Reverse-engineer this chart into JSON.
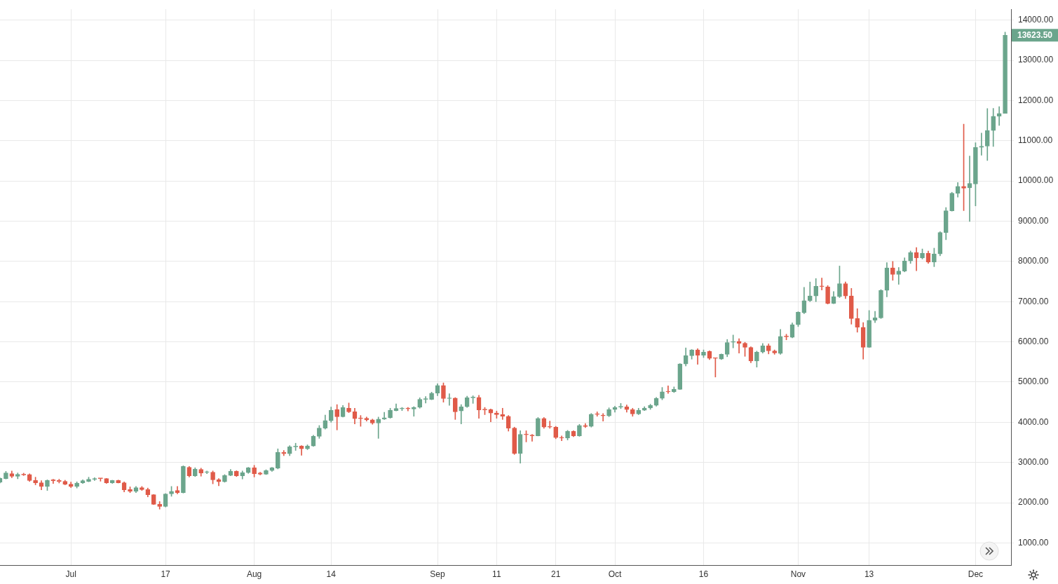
{
  "chart_data": {
    "type": "candlestick",
    "x": [
      "--06-19",
      "--06-20",
      "--06-21",
      "--06-22",
      "--06-23",
      "--06-24",
      "--06-25",
      "--06-26",
      "--06-27",
      "--06-28",
      "--06-29",
      "--06-30",
      "--07-01",
      "--07-02",
      "--07-03",
      "--07-04",
      "--07-05",
      "--07-06",
      "--07-07",
      "--07-08",
      "--07-09",
      "--07-10",
      "--07-11",
      "--07-12",
      "--07-13",
      "--07-14",
      "--07-15",
      "--07-16",
      "--07-17",
      "--07-18",
      "--07-19",
      "--07-20",
      "--07-21",
      "--07-22",
      "--07-23",
      "--07-24",
      "--07-25",
      "--07-26",
      "--07-27",
      "--07-28",
      "--07-29",
      "--07-30",
      "--07-31",
      "--08-01",
      "--08-02",
      "--08-03",
      "--08-04",
      "--08-05",
      "--08-06",
      "--08-07",
      "--08-08",
      "--08-09",
      "--08-10",
      "--08-11",
      "--08-12",
      "--08-13",
      "--08-14",
      "--08-15",
      "--08-16",
      "--08-17",
      "--08-18",
      "--08-19",
      "--08-20",
      "--08-21",
      "--08-22",
      "--08-23",
      "--08-24",
      "--08-25",
      "--08-26",
      "--08-27",
      "--08-28",
      "--08-29",
      "--08-30",
      "--08-31",
      "--09-01",
      "--09-02",
      "--09-03",
      "--09-04",
      "--09-05",
      "--09-06",
      "--09-07",
      "--09-08",
      "--09-09",
      "--09-10",
      "--09-11",
      "--09-12",
      "--09-13",
      "--09-14",
      "--09-15",
      "--09-16",
      "--09-17",
      "--09-18",
      "--09-19",
      "--09-20",
      "--09-21",
      "--09-22",
      "--09-23",
      "--09-24",
      "--09-25",
      "--09-26",
      "--09-27",
      "--09-28",
      "--09-29",
      "--09-30",
      "--10-01",
      "--10-02",
      "--10-03",
      "--10-04",
      "--10-05",
      "--10-06",
      "--10-07",
      "--10-08",
      "--10-09",
      "--10-10",
      "--10-11",
      "--10-12",
      "--10-13",
      "--10-14",
      "--10-15",
      "--10-16",
      "--10-17",
      "--10-18",
      "--10-19",
      "--10-20",
      "--10-21",
      "--10-22",
      "--10-23",
      "--10-24",
      "--10-25",
      "--10-26",
      "--10-27",
      "--10-28",
      "--10-29",
      "--10-30",
      "--10-31",
      "--11-01",
      "--11-02",
      "--11-03",
      "--11-04",
      "--11-05",
      "--11-06",
      "--11-07",
      "--11-08",
      "--11-09",
      "--11-10",
      "--11-11",
      "--11-12",
      "--11-13",
      "--11-14",
      "--11-15",
      "--11-16",
      "--11-17",
      "--11-18",
      "--11-19",
      "--11-20",
      "--11-21",
      "--11-22",
      "--11-23",
      "--11-24",
      "--11-25",
      "--11-26",
      "--11-27",
      "--11-28",
      "--11-29",
      "--11-30",
      "--12-01",
      "--12-02",
      "--12-03",
      "--12-04",
      "--12-05",
      "--12-06"
    ],
    "ohlc": [
      [
        2510,
        2620,
        2490,
        2605
      ],
      [
        2600,
        2780,
        2590,
        2740
      ],
      [
        2725,
        2790,
        2620,
        2655
      ],
      [
        2655,
        2740,
        2595,
        2705
      ],
      [
        2710,
        2735,
        2675,
        2690
      ],
      [
        2700,
        2720,
        2530,
        2550
      ],
      [
        2555,
        2635,
        2445,
        2495
      ],
      [
        2495,
        2550,
        2320,
        2405
      ],
      [
        2405,
        2570,
        2305,
        2555
      ],
      [
        2570,
        2585,
        2480,
        2545
      ],
      [
        2555,
        2585,
        2490,
        2525
      ],
      [
        2530,
        2560,
        2445,
        2460
      ],
      [
        2460,
        2515,
        2375,
        2405
      ],
      [
        2405,
        2520,
        2365,
        2490
      ],
      [
        2495,
        2570,
        2480,
        2550
      ],
      [
        2530,
        2635,
        2520,
        2585
      ],
      [
        2580,
        2625,
        2550,
        2600
      ],
      [
        2602,
        2605,
        2535,
        2600
      ],
      [
        2600,
        2605,
        2480,
        2495
      ],
      [
        2495,
        2560,
        2480,
        2555
      ],
      [
        2555,
        2565,
        2490,
        2495
      ],
      [
        2495,
        2520,
        2270,
        2320
      ],
      [
        2330,
        2395,
        2250,
        2285
      ],
      [
        2285,
        2405,
        2250,
        2375
      ],
      [
        2375,
        2405,
        2305,
        2325
      ],
      [
        2325,
        2365,
        2145,
        2200
      ],
      [
        2200,
        2205,
        1955,
        1960
      ],
      [
        1960,
        2030,
        1840,
        1905
      ],
      [
        1905,
        2225,
        1895,
        2220
      ],
      [
        2220,
        2405,
        2160,
        2285
      ],
      [
        2305,
        2405,
        2220,
        2250
      ],
      [
        2250,
        2920,
        2240,
        2900
      ],
      [
        2880,
        2900,
        2640,
        2670
      ],
      [
        2670,
        2870,
        2650,
        2835
      ],
      [
        2830,
        2860,
        2660,
        2740
      ],
      [
        2755,
        2790,
        2720,
        2765
      ],
      [
        2760,
        2790,
        2470,
        2570
      ],
      [
        2575,
        2600,
        2420,
        2520
      ],
      [
        2520,
        2700,
        2510,
        2680
      ],
      [
        2680,
        2830,
        2670,
        2785
      ],
      [
        2785,
        2795,
        2650,
        2670
      ],
      [
        2670,
        2790,
        2590,
        2750
      ],
      [
        2750,
        2880,
        2730,
        2870
      ],
      [
        2870,
        2930,
        2640,
        2720
      ],
      [
        2740,
        2760,
        2690,
        2710
      ],
      [
        2710,
        2820,
        2700,
        2800
      ],
      [
        2800,
        2880,
        2780,
        2870
      ],
      [
        2860,
        3340,
        2840,
        3255
      ],
      [
        3255,
        3300,
        3170,
        3220
      ],
      [
        3220,
        3420,
        3170,
        3390
      ],
      [
        3390,
        3480,
        3300,
        3400
      ],
      [
        3410,
        3420,
        3180,
        3340
      ],
      [
        3340,
        3440,
        3320,
        3410
      ],
      [
        3410,
        3680,
        3400,
        3650
      ],
      [
        3650,
        3920,
        3600,
        3855
      ],
      [
        3855,
        4180,
        3830,
        4045
      ],
      [
        4040,
        4380,
        4000,
        4300
      ],
      [
        4320,
        4440,
        3810,
        4140
      ],
      [
        4140,
        4420,
        4130,
        4365
      ],
      [
        4350,
        4480,
        4240,
        4260
      ],
      [
        4260,
        4350,
        3960,
        4090
      ],
      [
        4095,
        4170,
        3900,
        4090
      ],
      [
        4100,
        4130,
        4030,
        4060
      ],
      [
        4060,
        4080,
        3950,
        3980
      ],
      [
        3980,
        4130,
        3600,
        4080
      ],
      [
        4080,
        4250,
        4070,
        4115
      ],
      [
        4115,
        4350,
        4100,
        4300
      ],
      [
        4290,
        4460,
        4280,
        4345
      ],
      [
        4335,
        4370,
        4290,
        4340
      ],
      [
        4340,
        4370,
        4280,
        4335
      ],
      [
        4330,
        4390,
        4150,
        4370
      ],
      [
        4375,
        4610,
        4350,
        4570
      ],
      [
        4570,
        4640,
        4480,
        4575
      ],
      [
        4570,
        4750,
        4560,
        4725
      ],
      [
        4725,
        4960,
        4660,
        4915
      ],
      [
        4915,
        4980,
        4500,
        4590
      ],
      [
        4590,
        4710,
        4420,
        4600
      ],
      [
        4600,
        4615,
        4070,
        4260
      ],
      [
        4280,
        4440,
        3960,
        4385
      ],
      [
        4385,
        4650,
        4370,
        4610
      ],
      [
        4610,
        4660,
        4470,
        4620
      ],
      [
        4620,
        4670,
        4100,
        4310
      ],
      [
        4320,
        4370,
        4190,
        4310
      ],
      [
        4320,
        4330,
        4010,
        4230
      ],
      [
        4230,
        4280,
        4100,
        4190
      ],
      [
        4190,
        4350,
        4070,
        4150
      ],
      [
        4150,
        4170,
        3780,
        3855
      ],
      [
        3855,
        3880,
        3200,
        3222
      ],
      [
        3222,
        3790,
        2984,
        3700
      ],
      [
        3700,
        3790,
        3512,
        3690
      ],
      [
        3680,
        3700,
        3530,
        3665
      ],
      [
        3665,
        4120,
        3660,
        4095
      ],
      [
        4095,
        4120,
        3850,
        3880
      ],
      [
        3890,
        4030,
        3850,
        3880
      ],
      [
        3880,
        3900,
        3590,
        3620
      ],
      [
        3620,
        3660,
        3540,
        3610
      ],
      [
        3610,
        3800,
        3560,
        3780
      ],
      [
        3780,
        3790,
        3640,
        3665
      ],
      [
        3665,
        3950,
        3650,
        3920
      ],
      [
        3920,
        3970,
        3870,
        3895
      ],
      [
        3900,
        4220,
        3880,
        4200
      ],
      [
        4200,
        4260,
        4150,
        4195
      ],
      [
        4180,
        4220,
        4030,
        4160
      ],
      [
        4160,
        4360,
        4140,
        4320
      ],
      [
        4315,
        4400,
        4250,
        4370
      ],
      [
        4380,
        4470,
        4340,
        4385
      ],
      [
        4385,
        4430,
        4250,
        4315
      ],
      [
        4315,
        4350,
        4150,
        4210
      ],
      [
        4210,
        4350,
        4190,
        4300
      ],
      [
        4300,
        4390,
        4290,
        4355
      ],
      [
        4355,
        4450,
        4320,
        4420
      ],
      [
        4420,
        4620,
        4400,
        4595
      ],
      [
        4595,
        4867,
        4560,
        4760
      ],
      [
        4760,
        4907,
        4720,
        4755
      ],
      [
        4755,
        4880,
        4740,
        4820
      ],
      [
        4820,
        5460,
        4815,
        5450
      ],
      [
        5450,
        5850,
        5400,
        5655
      ],
      [
        5655,
        5810,
        5570,
        5800
      ],
      [
        5800,
        5830,
        5440,
        5670
      ],
      [
        5670,
        5800,
        5610,
        5745
      ],
      [
        5765,
        5780,
        5560,
        5590
      ],
      [
        5595,
        5600,
        5125,
        5590
      ],
      [
        5570,
        5700,
        5560,
        5690
      ],
      [
        5690,
        6060,
        5630,
        5985
      ],
      [
        5990,
        6170,
        5850,
        6010
      ],
      [
        6015,
        6080,
        5720,
        5965
      ],
      [
        5965,
        5990,
        5640,
        5865
      ],
      [
        5860,
        5880,
        5480,
        5525
      ],
      [
        5525,
        5770,
        5371,
        5745
      ],
      [
        5745,
        5960,
        5720,
        5900
      ],
      [
        5900,
        5950,
        5700,
        5775
      ],
      [
        5775,
        5800,
        5690,
        5725
      ],
      [
        5710,
        6309,
        5690,
        6137
      ],
      [
        6137,
        6190,
        6050,
        6126
      ],
      [
        6114,
        6470,
        6100,
        6427
      ],
      [
        6427,
        6750,
        6380,
        6739
      ],
      [
        6722,
        7358,
        6700,
        7023
      ],
      [
        7023,
        7489,
        7000,
        7142
      ],
      [
        7142,
        7574,
        7000,
        7381
      ],
      [
        7381,
        7585,
        7290,
        7375
      ],
      [
        7364,
        7400,
        6940,
        6955
      ],
      [
        6955,
        7250,
        6950,
        7125
      ],
      [
        7125,
        7886,
        7100,
        7449
      ],
      [
        7449,
        7490,
        7075,
        7142
      ],
      [
        7142,
        7330,
        6440,
        6580
      ],
      [
        6580,
        6825,
        6240,
        6364
      ],
      [
        6364,
        6480,
        5570,
        5864
      ],
      [
        5864,
        6780,
        5860,
        6535
      ],
      [
        6535,
        6760,
        6480,
        6597
      ],
      [
        6597,
        7300,
        6580,
        7279
      ],
      [
        7279,
        7970,
        7120,
        7841
      ],
      [
        7841,
        8000,
        7530,
        7676
      ],
      [
        7676,
        7850,
        7430,
        7761
      ],
      [
        7761,
        8090,
        7740,
        8011
      ],
      [
        8011,
        8260,
        7950,
        8218
      ],
      [
        8218,
        8345,
        7770,
        8086
      ],
      [
        8086,
        8310,
        8060,
        8200
      ],
      [
        8200,
        8260,
        7950,
        7985
      ],
      [
        7985,
        8330,
        7870,
        8185
      ],
      [
        8185,
        8740,
        8140,
        8720
      ],
      [
        8720,
        9340,
        8540,
        9260
      ],
      [
        9260,
        9720,
        9250,
        9695
      ],
      [
        9695,
        9960,
        9600,
        9865
      ],
      [
        9865,
        11415,
        9263,
        9820
      ],
      [
        9830,
        10620,
        8993,
        9940
      ],
      [
        9925,
        10950,
        9380,
        10835
      ],
      [
        10835,
        11190,
        10640,
        10865
      ],
      [
        10865,
        11800,
        10510,
        11255
      ],
      [
        11255,
        11805,
        10860,
        11610
      ],
      [
        11610,
        11850,
        11380,
        11680
      ],
      [
        11680,
        13700,
        11680,
        13623.5
      ]
    ],
    "colors": [
      "#6ba58c",
      "#6ba58c",
      "#e05a48",
      "#6ba58c",
      "#e05a48",
      "#e05a48",
      "#e05a48",
      "#e05a48",
      "#6ba58c",
      "#e05a48",
      "#e05a48",
      "#e05a48",
      "#e05a48",
      "#6ba58c",
      "#6ba58c",
      "#6ba58c",
      "#6ba58c",
      "#e05a48",
      "#e05a48",
      "#6ba58c",
      "#e05a48",
      "#e05a48",
      "#e05a48",
      "#6ba58c",
      "#e05a48",
      "#e05a48",
      "#e05a48",
      "#e05a48",
      "#6ba58c",
      "#6ba58c",
      "#e05a48",
      "#6ba58c",
      "#e05a48",
      "#6ba58c",
      "#e05a48",
      "#6ba58c",
      "#e05a48",
      "#e05a48",
      "#6ba58c",
      "#6ba58c",
      "#e05a48",
      "#6ba58c",
      "#6ba58c",
      "#e05a48",
      "#e05a48",
      "#6ba58c",
      "#6ba58c",
      "#6ba58c",
      "#e05a48",
      "#6ba58c",
      "#6ba58c",
      "#e05a48",
      "#6ba58c",
      "#6ba58c",
      "#6ba58c",
      "#6ba58c",
      "#6ba58c",
      "#e05a48",
      "#6ba58c",
      "#e05a48",
      "#e05a48",
      "#e05a48",
      "#e05a48",
      "#e05a48",
      "#6ba58c",
      "#6ba58c",
      "#6ba58c",
      "#6ba58c",
      "#6ba58c",
      "#e05a48",
      "#6ba58c",
      "#6ba58c",
      "#6ba58c",
      "#6ba58c",
      "#6ba58c",
      "#e05a48",
      "#6ba58c",
      "#e05a48",
      "#6ba58c",
      "#6ba58c",
      "#6ba58c",
      "#e05a48",
      "#e05a48",
      "#e05a48",
      "#e05a48",
      "#e05a48",
      "#e05a48",
      "#e05a48",
      "#6ba58c",
      "#e05a48",
      "#e05a48",
      "#6ba58c",
      "#e05a48",
      "#e05a48",
      "#e05a48",
      "#e05a48",
      "#6ba58c",
      "#e05a48",
      "#6ba58c",
      "#e05a48",
      "#6ba58c",
      "#e05a48",
      "#e05a48",
      "#6ba58c",
      "#6ba58c",
      "#6ba58c",
      "#e05a48",
      "#e05a48",
      "#6ba58c",
      "#6ba58c",
      "#6ba58c",
      "#6ba58c",
      "#6ba58c",
      "#e05a48",
      "#6ba58c",
      "#6ba58c",
      "#6ba58c",
      "#6ba58c",
      "#e05a48",
      "#6ba58c",
      "#e05a48",
      "#e05a48",
      "#6ba58c",
      "#6ba58c",
      "#6ba58c",
      "#e05a48",
      "#e05a48",
      "#e05a48",
      "#6ba58c",
      "#6ba58c",
      "#e05a48",
      "#e05a48",
      "#6ba58c",
      "#e05a48",
      "#6ba58c",
      "#6ba58c",
      "#6ba58c",
      "#6ba58c",
      "#6ba58c",
      "#e05a48",
      "#e05a48",
      "#6ba58c",
      "#6ba58c",
      "#e05a48",
      "#e05a48",
      "#e05a48",
      "#e05a48",
      "#6ba58c",
      "#6ba58c",
      "#6ba58c",
      "#6ba58c",
      "#e05a48",
      "#6ba58c",
      "#6ba58c",
      "#6ba58c",
      "#e05a48",
      "#6ba58c",
      "#e05a48",
      "#6ba58c",
      "#6ba58c",
      "#6ba58c",
      "#6ba58c",
      "#6ba58c",
      "#e05a48",
      "#6ba58c",
      "#6ba58c",
      "#6ba58c",
      "#6ba58c",
      "#6ba58c",
      "#6ba58c",
      "#6ba58c"
    ],
    "xlim": [
      "--06-19",
      "--12-07"
    ],
    "xticks": [
      {
        "value": "--07-01",
        "label": "Jul"
      },
      {
        "value": "--07-17",
        "label": "17"
      },
      {
        "value": "--08-01",
        "label": "Aug"
      },
      {
        "value": "--08-14",
        "label": "14"
      },
      {
        "value": "--09-01",
        "label": "Sep"
      },
      {
        "value": "--09-11",
        "label": "11"
      },
      {
        "value": "--09-21",
        "label": "21"
      },
      {
        "value": "--10-01",
        "label": "Oct"
      },
      {
        "value": "--10-16",
        "label": "16"
      },
      {
        "value": "--11-01",
        "label": "Nov"
      },
      {
        "value": "--11-13",
        "label": "13"
      },
      {
        "value": "--12-01",
        "label": "Dec"
      }
    ],
    "ylim": [
      450,
      14270
    ],
    "yticks": [
      {
        "value": 1000,
        "label": "1000.00"
      },
      {
        "value": 2000,
        "label": "2000.00"
      },
      {
        "value": 3000,
        "label": "3000.00"
      },
      {
        "value": 4000,
        "label": "4000.00"
      },
      {
        "value": 5000,
        "label": "5000.00"
      },
      {
        "value": 6000,
        "label": "6000.00"
      },
      {
        "value": 7000,
        "label": "7000.00"
      },
      {
        "value": 8000,
        "label": "8000.00"
      },
      {
        "value": 9000,
        "label": "9000.00"
      },
      {
        "value": 10000,
        "label": "10000.00"
      },
      {
        "value": 11000,
        "label": "11000.00"
      },
      {
        "value": 12000,
        "label": "12000.00"
      },
      {
        "value": 13000,
        "label": "13000.00"
      },
      {
        "value": 14000,
        "label": "14000.00"
      }
    ],
    "annotations": [
      {
        "text": "13623.50",
        "x": "--12-06",
        "y": 13623.5
      }
    ],
    "grid": true
  }
}
